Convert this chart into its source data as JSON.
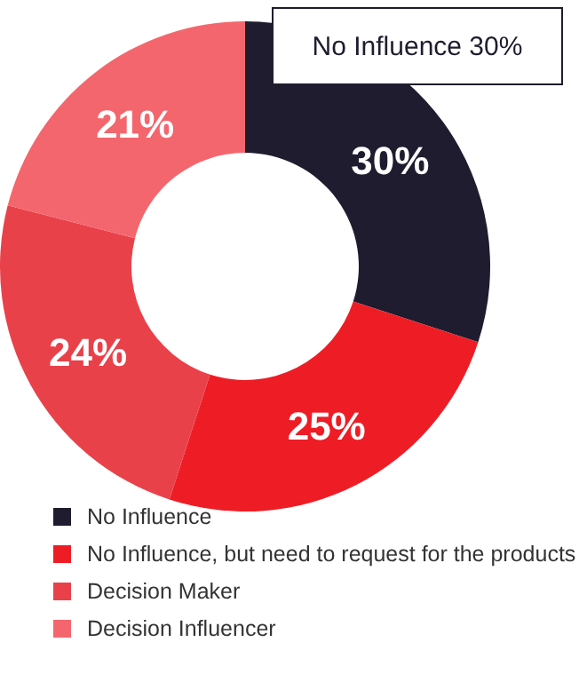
{
  "chart_data": {
    "type": "donut",
    "categories": [
      "No Influence",
      "No Influence, but need to request for the products",
      "Decision Maker",
      "Decision Influencer"
    ],
    "values": [
      30,
      25,
      24,
      21
    ],
    "colors": [
      "#1e1c2e",
      "#ee1d25",
      "#e9414a",
      "#f4666d"
    ],
    "value_labels": [
      "30%",
      "25%",
      "24%",
      "21%"
    ],
    "annotations": [
      "No Influence 30%"
    ],
    "legend": "bottom"
  }
}
